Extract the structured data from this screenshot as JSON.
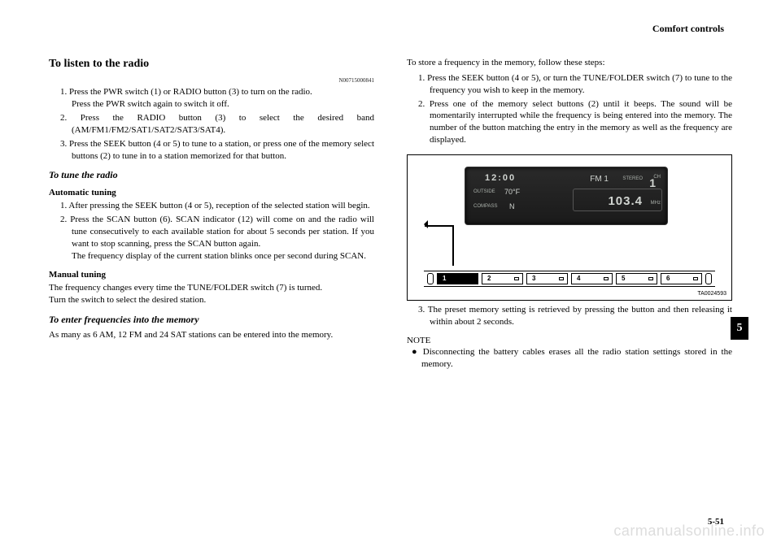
{
  "header": {
    "section": "Comfort controls"
  },
  "left": {
    "title": "To listen to the radio",
    "docId": "N00715000841",
    "steps": [
      "1. Press the PWR switch (1) or RADIO button (3) to turn on the radio.\nPress the PWR switch again to switch it off.",
      "2. Press the RADIO button (3) to select the desired band (AM/FM1/FM2/SAT1/SAT2/SAT3/SAT4).",
      "3. Press the SEEK button (4 or 5) to tune to a station, or press one of the memory select buttons (2) to tune in to a station memorized for that button."
    ],
    "tuneHeading": "To tune the radio",
    "autoHeading": "Automatic tuning",
    "autoSteps": [
      "1. After pressing the SEEK button (4 or 5), reception of the selected station will begin.",
      "2. Press the SCAN button (6). SCAN indicator (12) will come on and the radio will tune consecutively to each available station for about 5 seconds per station. If you want to stop scanning, press the SCAN button again.\nThe frequency display of the current station blinks once per second during SCAN."
    ],
    "manualHeading": "Manual tuning",
    "manualPara": "The frequency changes every time the TUNE/FOLDER switch (7) is turned.\nTurn the switch to select the desired station.",
    "enterHeading": "To enter frequencies into the memory",
    "enterPara": "As many as 6 AM, 12 FM and 24 SAT stations can be entered into the memory."
  },
  "right": {
    "intro": "To store a frequency in the memory, follow these steps:",
    "steps": [
      "1. Press the SEEK button (4 or 5), or turn the TUNE/FOLDER switch (7) to tune to the frequency you wish to keep in the memory.",
      "2. Press one of the memory select buttons (2) until it beeps. The sound will be momentarily interrupted while the frequency is being entered into the memory. The number of the button matching the entry in the memory as well as the frequency are displayed."
    ],
    "figure": {
      "time": "12:00",
      "band": "FM 1",
      "stereo": "STEREO",
      "chLabel": "CH",
      "preset": "1",
      "outsideLabel": "OUTSIDE",
      "temp": "70°F",
      "compassLabel": "COMPASS",
      "dir": "N",
      "freq": "103.4",
      "mhz": "MHz",
      "presets": [
        "1",
        "2",
        "3",
        "4",
        "5",
        "6"
      ],
      "figId": "TA0024593"
    },
    "step3": "3. The preset memory setting is retrieved by pressing the button and then releasing it within about 2 seconds.",
    "noteLabel": "NOTE",
    "noteBullet": "● Disconnecting the battery cables erases all the radio station settings stored in the memory."
  },
  "page": {
    "tab": "5",
    "num": "5-51"
  },
  "watermark": "carmanualsonline.info"
}
